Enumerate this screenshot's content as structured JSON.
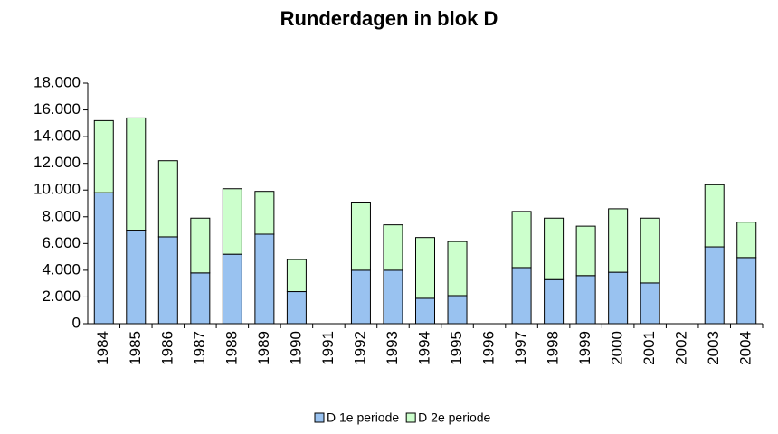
{
  "chart_data": {
    "type": "stacked_bar",
    "title": "Runderdagen in blok D",
    "categories": [
      "1984",
      "1985",
      "1986",
      "1987",
      "1988",
      "1989",
      "1990",
      "1991",
      "1992",
      "1993",
      "1994",
      "1995",
      "1996",
      "1997",
      "1998",
      "1999",
      "2000",
      "2001",
      "2002",
      "2003",
      "2004"
    ],
    "series": [
      {
        "name": "D 1e periode",
        "color": "#99c2f0",
        "values": [
          9800,
          7000,
          6500,
          3800,
          5200,
          6700,
          2400,
          null,
          4000,
          4000,
          1900,
          2100,
          null,
          4200,
          3300,
          3600,
          3850,
          3050,
          null,
          5750,
          4950
        ]
      },
      {
        "name": "D 2e periode",
        "color": "#ccffcc",
        "values": [
          5400,
          8400,
          5700,
          4100,
          4900,
          3200,
          2400,
          null,
          5100,
          3400,
          4550,
          4050,
          null,
          4200,
          4600,
          3700,
          4750,
          4850,
          null,
          4650,
          2650
        ]
      }
    ],
    "ylim": [
      0,
      18000
    ],
    "yticks": [
      0,
      {
        "value": 2000,
        "label": "2.000"
      },
      {
        "value": 4000,
        "label": "4.000"
      },
      {
        "value": 6000,
        "label": "6.000"
      },
      {
        "value": 8000,
        "label": "8.000"
      },
      {
        "value": 10000,
        "label": "10.000"
      },
      {
        "value": 12000,
        "label": "12.000"
      },
      {
        "value": 14000,
        "label": "14.000"
      },
      {
        "value": 16000,
        "label": "16.000"
      },
      {
        "value": 18000,
        "label": "18.000"
      }
    ],
    "grid": false,
    "legend": "bottom"
  }
}
